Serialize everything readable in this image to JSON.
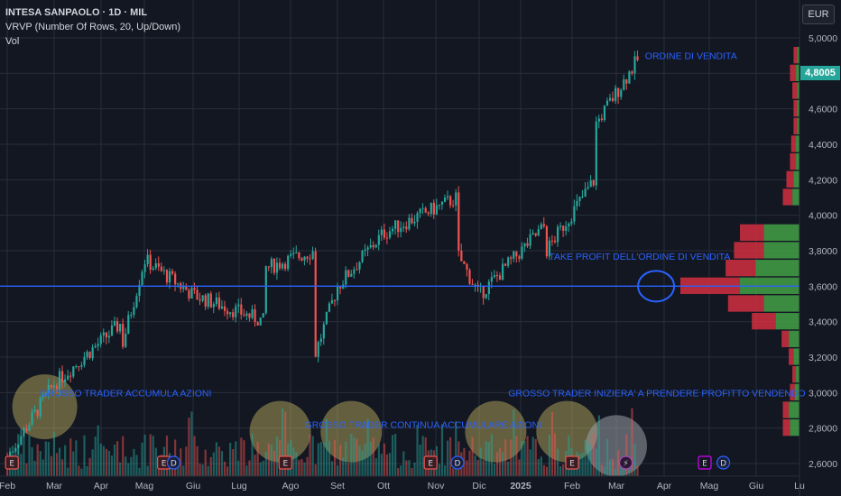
{
  "header": {
    "title": "INTESA SANPAOLO · 1D · MIL",
    "indicator": "VRVP (Number Of Rows, 20, Up/Down)",
    "volume_label": "Vol"
  },
  "currency": "EUR",
  "last_price": "4,8005",
  "colors": {
    "up": "#26a69a",
    "down": "#ef5350",
    "annotation": "#2962ff",
    "horizontal_line": "#2962ff",
    "highlight_circle": "#d4c66a",
    "profile_up": "#43a047",
    "profile_down": "#d32f3f"
  },
  "chart_data": {
    "type": "candlestick",
    "y_axis": {
      "ticks": [
        "5,0000",
        "4,8000",
        "4,6000",
        "4,4000",
        "4,2000",
        "4,0000",
        "3,8000",
        "3,6000",
        "3,4000",
        "3,2000",
        "3,0000",
        "2,8000",
        "2,6000"
      ],
      "range": [
        2.6,
        5.0
      ]
    },
    "x_axis": {
      "ticks": [
        "Feb",
        "Mar",
        "Apr",
        "Mag",
        "Giu",
        "Lug",
        "Ago",
        "Set",
        "Ott",
        "Nov",
        "Dic",
        "2025",
        "Feb",
        "Mar",
        "Apr",
        "Mag",
        "Giu",
        "Lu"
      ]
    },
    "price_path": [
      {
        "month": "Feb",
        "price": 2.64
      },
      {
        "month": "Mar",
        "price": 3.05
      },
      {
        "month": "Apr",
        "price": 3.4
      },
      {
        "month": "Apr",
        "price": 3.28
      },
      {
        "month": "Mag",
        "price": 3.75
      },
      {
        "month": "Giu",
        "price": 3.55
      },
      {
        "month": "Lug",
        "price": 3.4
      },
      {
        "month": "Lug",
        "price": 3.7
      },
      {
        "month": "Ago",
        "price": 3.8
      },
      {
        "month": "Ago",
        "price": 3.2
      },
      {
        "month": "Set",
        "price": 3.6
      },
      {
        "month": "Ott",
        "price": 3.9
      },
      {
        "month": "Nov",
        "price": 4.1
      },
      {
        "month": "Nov",
        "price": 3.78
      },
      {
        "month": "Dic",
        "price": 3.55
      },
      {
        "month": "2025",
        "price": 3.95
      },
      {
        "month": "2025",
        "price": 3.8
      },
      {
        "month": "Feb",
        "price": 4.2
      },
      {
        "month": "Feb",
        "price": 4.5
      },
      {
        "month": "Mar",
        "price": 4.9
      },
      {
        "month": "Mar",
        "price": 4.8
      }
    ],
    "horizontal_line": 3.6,
    "volume_profile": [
      {
        "price": 4.9,
        "up": 0.02,
        "down": 0.03
      },
      {
        "price": 4.8,
        "up": 0.03,
        "down": 0.05
      },
      {
        "price": 4.7,
        "up": 0.02,
        "down": 0.04
      },
      {
        "price": 4.6,
        "up": 0.02,
        "down": 0.03
      },
      {
        "price": 4.5,
        "up": 0.02,
        "down": 0.03
      },
      {
        "price": 4.4,
        "up": 0.03,
        "down": 0.04
      },
      {
        "price": 4.3,
        "up": 0.03,
        "down": 0.05
      },
      {
        "price": 4.2,
        "up": 0.05,
        "down": 0.06
      },
      {
        "price": 4.1,
        "up": 0.06,
        "down": 0.08
      },
      {
        "price": 3.9,
        "up": 0.3,
        "down": 0.2
      },
      {
        "price": 3.8,
        "up": 0.3,
        "down": 0.25
      },
      {
        "price": 3.7,
        "up": 0.37,
        "down": 0.25
      },
      {
        "price": 3.6,
        "up": 0.5,
        "down": 0.5
      },
      {
        "price": 3.5,
        "up": 0.3,
        "down": 0.3
      },
      {
        "price": 3.4,
        "up": 0.2,
        "down": 0.2
      },
      {
        "price": 3.3,
        "up": 0.09,
        "down": 0.06
      },
      {
        "price": 3.2,
        "up": 0.05,
        "down": 0.04
      },
      {
        "price": 3.1,
        "up": 0.03,
        "down": 0.03
      },
      {
        "price": 3.0,
        "up": 0.04,
        "down": 0.04
      },
      {
        "price": 2.9,
        "up": 0.09,
        "down": 0.05
      },
      {
        "price": 2.8,
        "up": 0.08,
        "down": 0.06
      }
    ],
    "annotations": [
      {
        "text": "ORDINE DI VENDITA",
        "price": 4.88,
        "month_index": 13.6
      },
      {
        "text": "TAKE PROFIT DELL'ORDINE DI VENDITA",
        "price": 3.75,
        "month_index": 11.55
      },
      {
        "text": "GROSSO TRADER ACCUMULA AZIONI",
        "price": 2.98,
        "month_index": 0.7
      },
      {
        "text": "GROSSO TRADER CONTINUA ACCUMULARE AZIONI",
        "price": 2.8,
        "month_index": 6.3
      },
      {
        "text": "GROSSO TRADER INIZIERA' A PRENDERE PROFITTO VENDENDO",
        "price": 2.98,
        "month_index": 10.7
      }
    ],
    "event_markers": [
      {
        "label": "E",
        "kind": "earnings",
        "month_index": 0.1
      },
      {
        "label": "E",
        "kind": "earnings",
        "month_index": 3.4
      },
      {
        "label": "D",
        "kind": "dividend",
        "month_index": 3.6
      },
      {
        "label": "E",
        "kind": "earnings",
        "month_index": 5.9
      },
      {
        "label": "E",
        "kind": "earnings",
        "month_index": 8.9
      },
      {
        "label": "D",
        "kind": "dividend",
        "month_index": 9.5
      },
      {
        "label": "E",
        "kind": "earnings",
        "month_index": 12.0
      },
      {
        "label": "⚡",
        "kind": "event",
        "month_index": 13.2
      },
      {
        "label": "E",
        "kind": "earnings-future",
        "month_index": 14.9
      },
      {
        "label": "D",
        "kind": "dividend-future",
        "month_index": 15.3
      }
    ],
    "highlight_circles": [
      {
        "month_index": 0.8,
        "price": 2.92
      },
      {
        "month_index": 5.8,
        "price": 2.78
      },
      {
        "month_index": 7.3,
        "price": 2.78
      },
      {
        "month_index": 10.4,
        "price": 2.78
      },
      {
        "month_index": 11.9,
        "price": 2.78
      },
      {
        "month_index": 13.0,
        "price": 2.7
      }
    ],
    "drawn_ellipse": {
      "month_index": 13.7,
      "price": 3.6
    }
  }
}
